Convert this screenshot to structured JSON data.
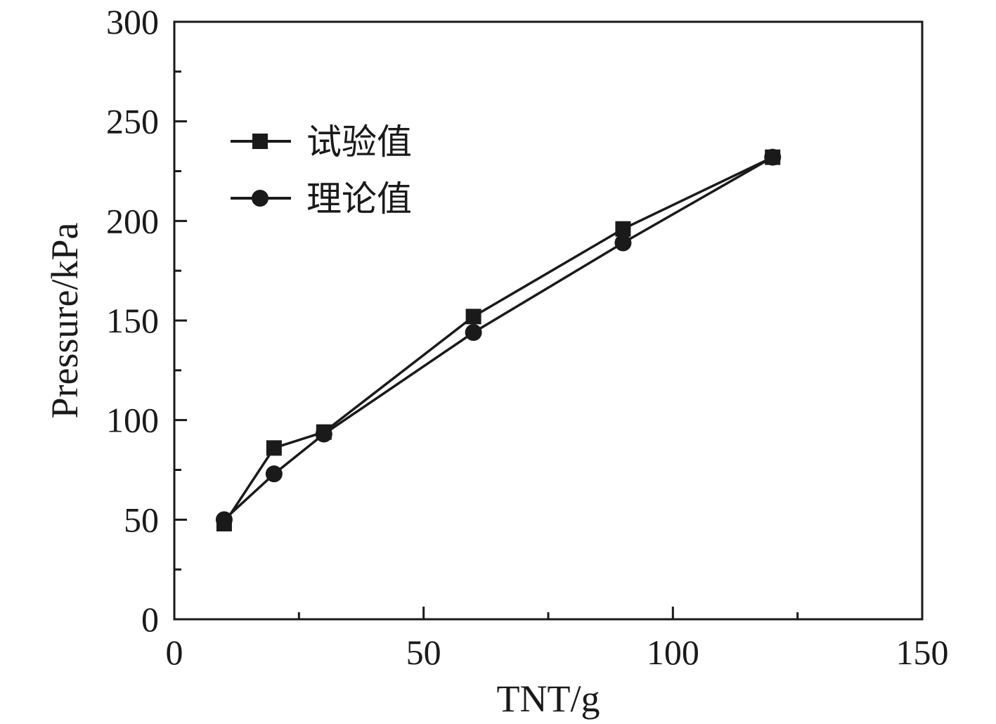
{
  "chart_data": {
    "type": "line",
    "title": "",
    "xlabel": "TNT/g",
    "ylabel": "Pressure/kPa",
    "xlim": [
      0,
      150
    ],
    "ylim": [
      0,
      300
    ],
    "x_major_ticks": [
      0,
      50,
      100,
      150
    ],
    "x_tick_labels": [
      "0",
      "50",
      "100",
      "150"
    ],
    "x_minor_ticks": [
      25,
      75,
      125
    ],
    "y_major_ticks": [
      0,
      50,
      100,
      150,
      200,
      250,
      300
    ],
    "y_tick_labels": [
      "0",
      "50",
      "100",
      "150",
      "200",
      "250",
      "300"
    ],
    "y_minor_ticks": [
      25,
      75,
      125,
      175,
      225,
      275
    ],
    "grid": false,
    "legend_position": "top-left",
    "series": [
      {
        "name": "试验值",
        "marker": "square",
        "x": [
          10,
          20,
          30,
          60,
          90,
          120
        ],
        "y": [
          48,
          86,
          94,
          152,
          196,
          232
        ]
      },
      {
        "name": "理论值",
        "marker": "circle",
        "x": [
          10,
          20,
          30,
          60,
          90,
          120
        ],
        "y": [
          50,
          73,
          93,
          144,
          189,
          232
        ]
      }
    ],
    "colors": {
      "line": "#1a1a1a",
      "marker": "#1a1a1a",
      "axis": "#1a1a1a",
      "background": "#ffffff"
    }
  }
}
